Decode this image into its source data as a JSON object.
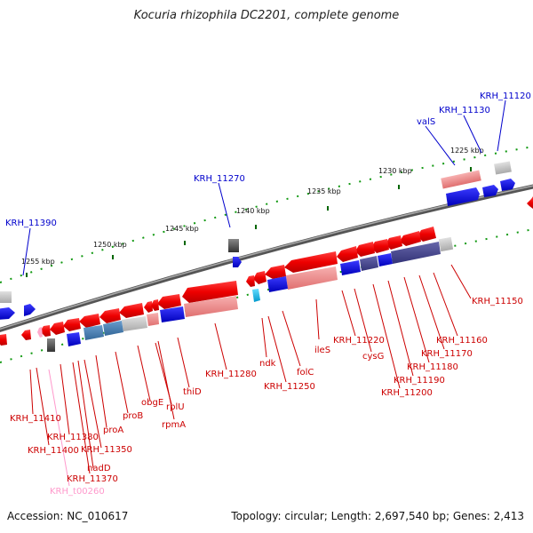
{
  "title": "Kocuria rhizophila DC2201, complete genome",
  "accession": "Accession: NC_010617",
  "topology": "Topology: circular; Length: 2,697,540 bp; Genes: 2,413",
  "scale_labels": [
    "1225 kbp",
    "1230 kbp",
    "1235 kbp",
    "1240 kbp",
    "1245 kbp",
    "1250 kbp",
    "1255 kbp"
  ],
  "outer_gene_labels": [
    "KRH_11120",
    "KRH_11130",
    "valS",
    "KRH_11270",
    "KRH_11390"
  ],
  "inner_gene_labels": [
    "KRH_11150",
    "KRH_11160",
    "KRH_11170",
    "KRH_11180",
    "KRH_11190",
    "KRH_11200",
    "cysG",
    "KRH_11220",
    "ileS",
    "folC",
    "KRH_11250",
    "ndk",
    "KRH_11280",
    "thiD",
    "rpmA",
    "rplU",
    "obgE",
    "proB",
    "proA",
    "KRH_11350",
    "nadD",
    "KRH_11370",
    "KRH_11380",
    "KRH_11400",
    "KRH_11410",
    "KRH_t00260"
  ],
  "colors": {
    "forward": "#0000cc",
    "reverse": "#cc0000",
    "trna": "#ff99cc",
    "backbone": "#777777",
    "tick": "#006600"
  }
}
